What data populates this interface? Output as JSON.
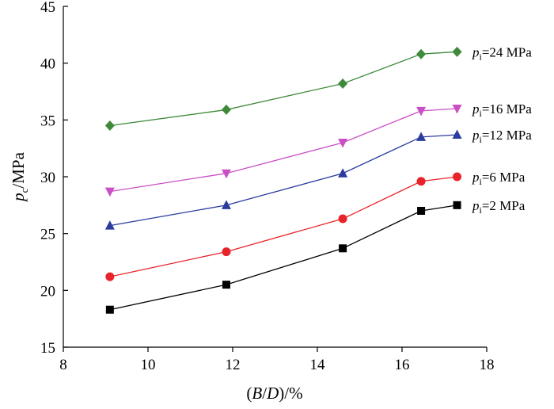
{
  "chart_data": {
    "type": "line",
    "title": "",
    "xlabel": {
      "open": "(",
      "b": "B",
      "slash": "/",
      "d": "D",
      "close": ")/%"
    },
    "ylabel": {
      "main": "p",
      "sub": "c",
      "rest": "/MPa"
    },
    "xlim": [
      8,
      18
    ],
    "ylim": [
      15,
      45
    ],
    "xticks": [
      8,
      10,
      12,
      14,
      16,
      18
    ],
    "yticks": [
      15,
      20,
      25,
      30,
      35,
      40,
      45
    ],
    "grid": false,
    "legend_placement": "right-of-lines",
    "x": [
      9.1,
      11.85,
      14.6,
      16.45,
      17.3
    ],
    "series": [
      {
        "name": "2 MPa",
        "label_prefix": "p",
        "label_sub": "i",
        "label_rest": "=2 MPa",
        "marker": "square",
        "color": "#000000",
        "values": [
          18.3,
          20.5,
          23.7,
          27.0,
          27.5
        ]
      },
      {
        "name": "6 MPa",
        "label_prefix": "p",
        "label_sub": "i",
        "label_rest": "=6 MPa",
        "marker": "circle",
        "color": "#e8242a",
        "values": [
          21.2,
          23.4,
          26.3,
          29.6,
          30.0
        ]
      },
      {
        "name": "12 MPa",
        "label_prefix": "p",
        "label_sub": "i",
        "label_rest": "=12 MPa",
        "marker": "triangle",
        "color": "#2b3c9e",
        "values": [
          25.7,
          27.5,
          30.3,
          33.5,
          33.7
        ]
      },
      {
        "name": "16 MPa",
        "label_prefix": "p",
        "label_sub": "i",
        "label_rest": "=16 MPa",
        "marker": "tri-down",
        "color": "#c94fc4",
        "values": [
          28.7,
          30.3,
          33.0,
          35.8,
          36.0
        ]
      },
      {
        "name": "24 MPa",
        "label_prefix": "p",
        "label_sub": "i",
        "label_rest": "=24 MPa",
        "marker": "diamond",
        "color": "#3f8a3a",
        "values": [
          34.5,
          35.9,
          38.2,
          40.8,
          41.0
        ]
      }
    ]
  }
}
